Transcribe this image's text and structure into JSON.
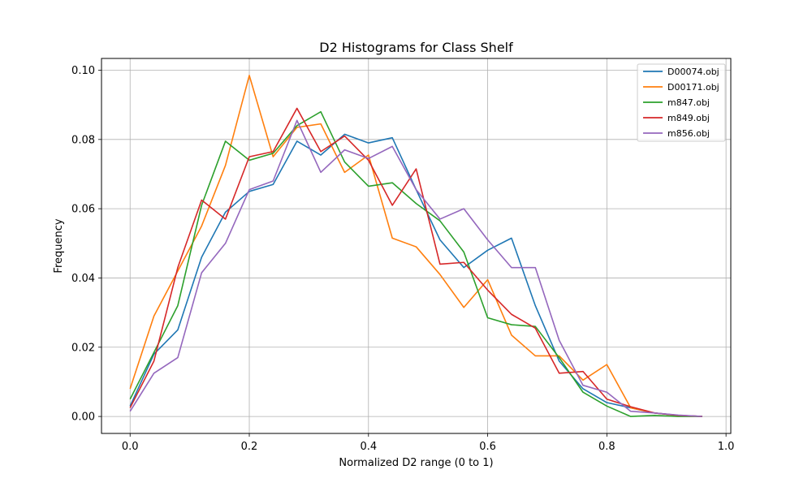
{
  "chart_data": {
    "type": "line",
    "title": "D2 Histograms for Class Shelf",
    "xlabel": "Normalized D2 range (0 to 1)",
    "ylabel": "Frequency",
    "xlim": [
      -0.048,
      1.008
    ],
    "ylim": [
      -0.0049,
      0.1034
    ],
    "xticks": [
      0.0,
      0.2,
      0.4,
      0.6,
      0.8,
      1.0
    ],
    "xtick_labels": [
      "0.0",
      "0.2",
      "0.4",
      "0.6",
      "0.8",
      "1.0"
    ],
    "yticks": [
      0.0,
      0.02,
      0.04,
      0.06,
      0.08,
      0.1
    ],
    "ytick_labels": [
      "0.00",
      "0.02",
      "0.04",
      "0.06",
      "0.08",
      "0.10"
    ],
    "grid": true,
    "legend_position": "top-right",
    "x": [
      0.0,
      0.04,
      0.08,
      0.12,
      0.16,
      0.2,
      0.24,
      0.28,
      0.32,
      0.36,
      0.4,
      0.44,
      0.48,
      0.52,
      0.56,
      0.6,
      0.64,
      0.68,
      0.72,
      0.76,
      0.8,
      0.84,
      0.88,
      0.92,
      0.96
    ],
    "series": [
      {
        "name": "D00074.obj",
        "color": "#1f77b4",
        "values": [
          0.003,
          0.018,
          0.025,
          0.046,
          0.059,
          0.065,
          0.067,
          0.0795,
          0.0755,
          0.0815,
          0.079,
          0.0805,
          0.0655,
          0.051,
          0.043,
          0.048,
          0.0515,
          0.032,
          0.016,
          0.008,
          0.004,
          0.0025,
          0.001,
          0.0003,
          0.0
        ]
      },
      {
        "name": "D00171.obj",
        "color": "#ff7f0e",
        "values": [
          0.008,
          0.029,
          0.042,
          0.055,
          0.0725,
          0.0985,
          0.075,
          0.0835,
          0.0845,
          0.0705,
          0.0755,
          0.0515,
          0.049,
          0.041,
          0.0315,
          0.0395,
          0.0235,
          0.0175,
          0.0175,
          0.0105,
          0.015,
          0.0025,
          0.001,
          0.0003,
          0.0
        ]
      },
      {
        "name": "m847.obj",
        "color": "#2ca02c",
        "values": [
          0.005,
          0.0185,
          0.032,
          0.061,
          0.0795,
          0.074,
          0.076,
          0.084,
          0.088,
          0.0735,
          0.0665,
          0.0675,
          0.0615,
          0.0565,
          0.0475,
          0.0285,
          0.0265,
          0.026,
          0.017,
          0.007,
          0.003,
          0.0,
          0.0003,
          0.0,
          0.0
        ]
      },
      {
        "name": "m849.obj",
        "color": "#d62728",
        "values": [
          0.0025,
          0.016,
          0.043,
          0.0625,
          0.057,
          0.075,
          0.0765,
          0.089,
          0.0765,
          0.081,
          0.074,
          0.061,
          0.0715,
          0.044,
          0.0445,
          0.0365,
          0.0295,
          0.0255,
          0.0125,
          0.013,
          0.005,
          0.0028,
          0.001,
          0.0003,
          0.0
        ]
      },
      {
        "name": "m856.obj",
        "color": "#9467bd",
        "values": [
          0.0015,
          0.0125,
          0.017,
          0.0415,
          0.05,
          0.0655,
          0.068,
          0.0855,
          0.0705,
          0.077,
          0.0745,
          0.078,
          0.0655,
          0.057,
          0.06,
          0.051,
          0.043,
          0.043,
          0.022,
          0.009,
          0.007,
          0.0015,
          0.001,
          0.0004,
          0.0
        ]
      }
    ]
  }
}
